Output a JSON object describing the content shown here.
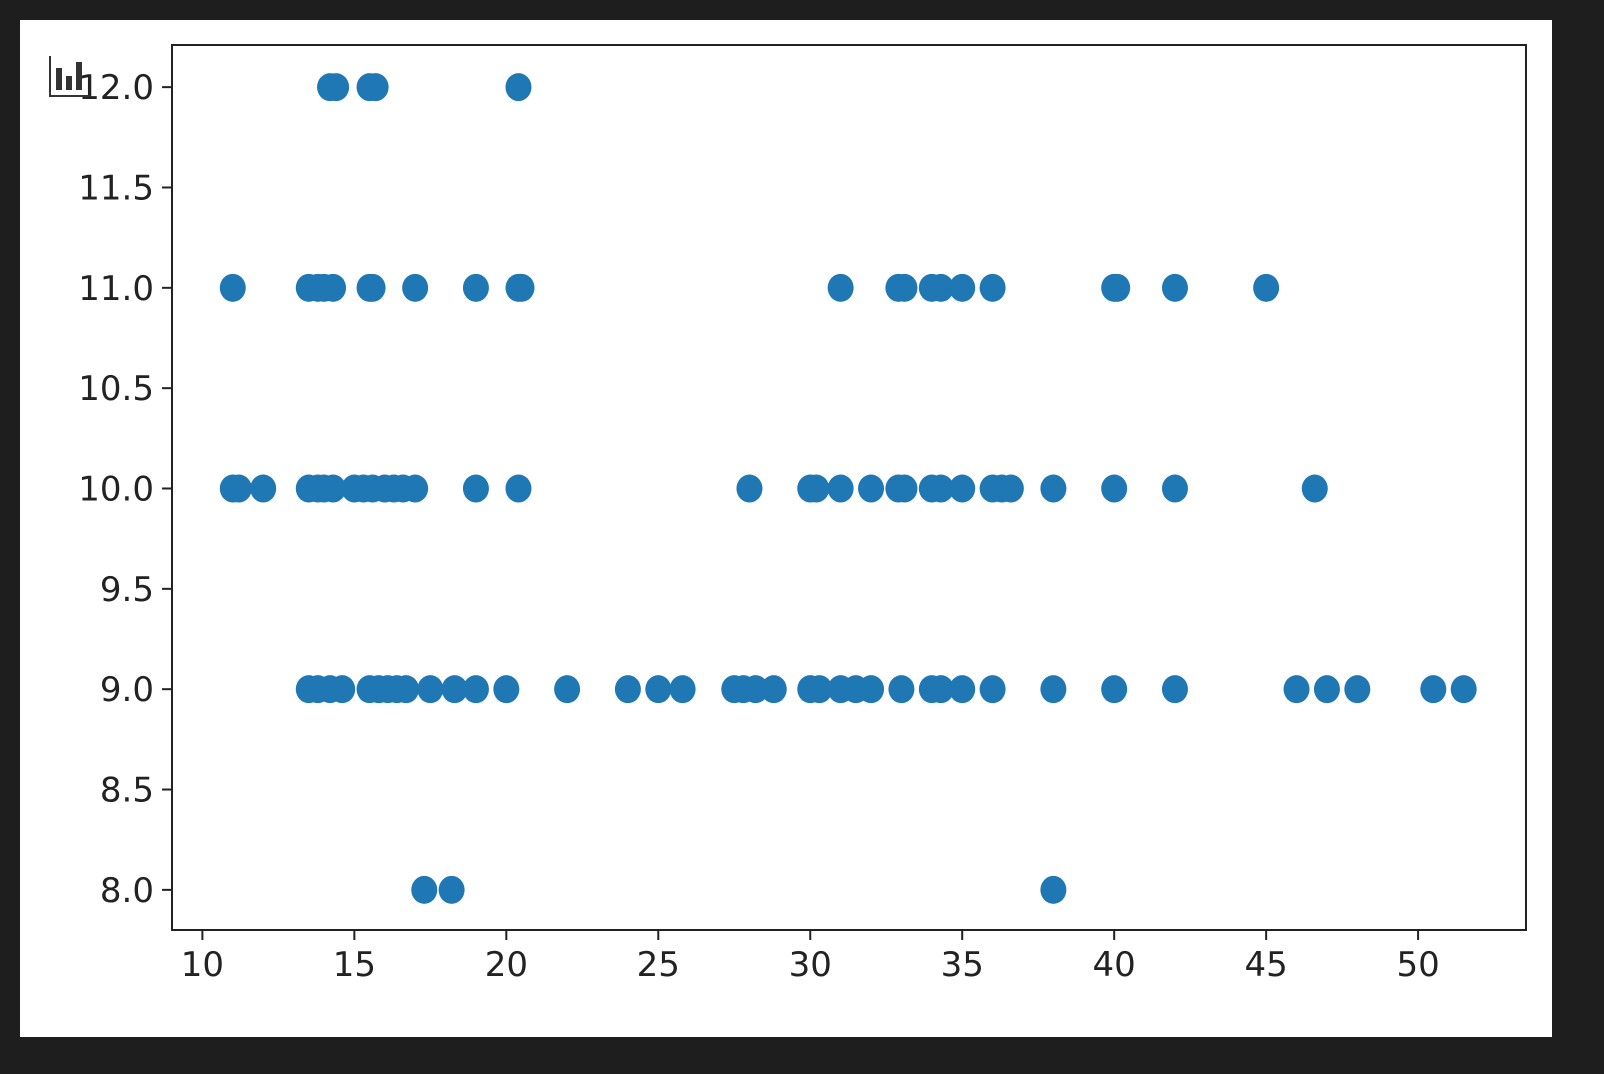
{
  "chart_data": {
    "type": "scatter",
    "title": "",
    "xlabel": "",
    "ylabel": "",
    "xlim": [
      9.0,
      53.55
    ],
    "ylim": [
      7.8,
      12.21
    ],
    "xticks": [
      "10",
      "15",
      "20",
      "25",
      "30",
      "35",
      "40",
      "45",
      "50"
    ],
    "yticks": [
      "8.0",
      "8.5",
      "9.0",
      "9.5",
      "10.0",
      "10.5",
      "11.0",
      "11.5",
      "12.0"
    ],
    "grid": false,
    "marker_color": "#1f77b4",
    "points": [
      [
        14.2,
        12
      ],
      [
        14.4,
        12
      ],
      [
        15.5,
        12
      ],
      [
        15.7,
        12
      ],
      [
        20.4,
        12
      ],
      [
        11,
        11
      ],
      [
        13.5,
        11
      ],
      [
        13.8,
        11
      ],
      [
        14,
        11
      ],
      [
        14.3,
        11
      ],
      [
        15.5,
        11
      ],
      [
        15.6,
        11
      ],
      [
        17,
        11
      ],
      [
        19,
        11
      ],
      [
        20.4,
        11
      ],
      [
        20.5,
        11
      ],
      [
        31,
        11
      ],
      [
        32.9,
        11
      ],
      [
        33.1,
        11
      ],
      [
        34,
        11
      ],
      [
        34.3,
        11
      ],
      [
        35,
        11
      ],
      [
        36,
        11
      ],
      [
        40,
        11
      ],
      [
        40.1,
        11
      ],
      [
        42,
        11
      ],
      [
        45,
        11
      ],
      [
        11,
        10
      ],
      [
        11.2,
        10
      ],
      [
        12,
        10
      ],
      [
        13.5,
        10
      ],
      [
        13.8,
        10
      ],
      [
        14,
        10
      ],
      [
        14.3,
        10
      ],
      [
        15,
        10
      ],
      [
        15.3,
        10
      ],
      [
        15.6,
        10
      ],
      [
        16,
        10
      ],
      [
        16.3,
        10
      ],
      [
        16.6,
        10
      ],
      [
        17,
        10
      ],
      [
        19,
        10
      ],
      [
        20.4,
        10
      ],
      [
        28,
        10
      ],
      [
        30,
        10
      ],
      [
        30.2,
        10
      ],
      [
        31,
        10
      ],
      [
        32,
        10
      ],
      [
        32.9,
        10
      ],
      [
        33.1,
        10
      ],
      [
        34,
        10
      ],
      [
        34.3,
        10
      ],
      [
        35,
        10
      ],
      [
        36,
        10
      ],
      [
        36.3,
        10
      ],
      [
        36.6,
        10
      ],
      [
        38,
        10
      ],
      [
        40,
        10
      ],
      [
        42,
        10
      ],
      [
        46.6,
        10
      ],
      [
        13.5,
        9
      ],
      [
        13.8,
        9
      ],
      [
        14.2,
        9
      ],
      [
        14.6,
        9
      ],
      [
        15.5,
        9
      ],
      [
        15.8,
        9
      ],
      [
        16.1,
        9
      ],
      [
        16.4,
        9
      ],
      [
        16.7,
        9
      ],
      [
        17.5,
        9
      ],
      [
        18.3,
        9
      ],
      [
        19,
        9
      ],
      [
        20,
        9
      ],
      [
        22,
        9
      ],
      [
        24,
        9
      ],
      [
        25,
        9
      ],
      [
        25.8,
        9
      ],
      [
        27.5,
        9
      ],
      [
        27.8,
        9
      ],
      [
        28.2,
        9
      ],
      [
        28.8,
        9
      ],
      [
        30,
        9
      ],
      [
        30.3,
        9
      ],
      [
        31,
        9
      ],
      [
        31.5,
        9
      ],
      [
        32,
        9
      ],
      [
        33,
        9
      ],
      [
        34,
        9
      ],
      [
        34.3,
        9
      ],
      [
        35,
        9
      ],
      [
        36,
        9
      ],
      [
        38,
        9
      ],
      [
        40,
        9
      ],
      [
        42,
        9
      ],
      [
        46,
        9
      ],
      [
        47,
        9
      ],
      [
        48,
        9
      ],
      [
        50.5,
        9
      ],
      [
        51.5,
        9
      ],
      [
        17.3,
        8
      ],
      [
        18.2,
        8
      ],
      [
        38,
        8
      ]
    ]
  },
  "toolbar": {
    "icon": "bar-chart-icon"
  }
}
